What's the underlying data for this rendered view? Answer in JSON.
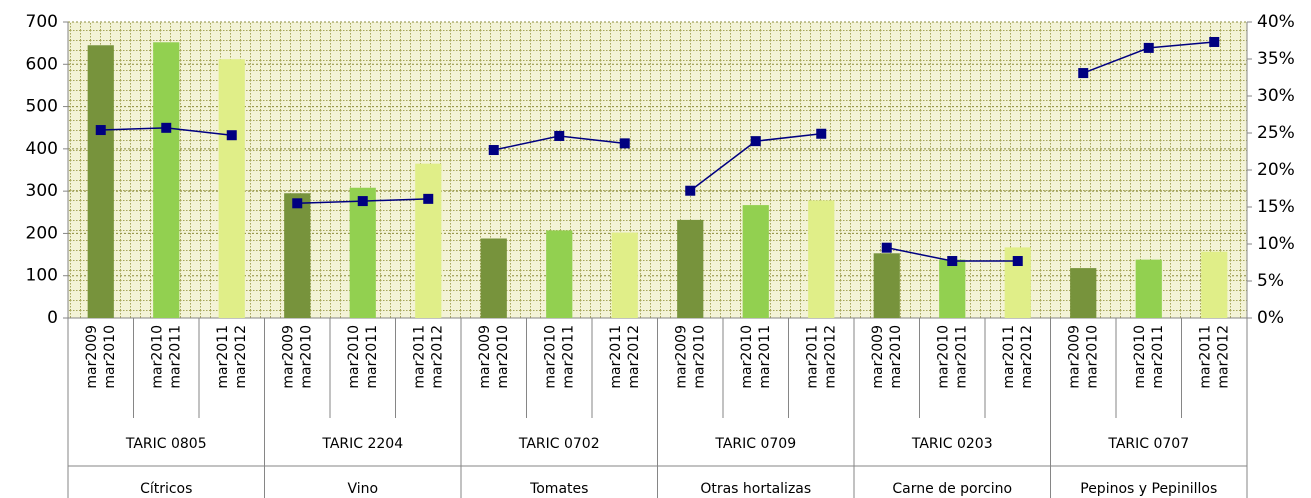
{
  "chart_data": {
    "type": "bar-line",
    "categories": [
      [
        "mar2009",
        "mar2010"
      ],
      [
        "mar2010",
        "mar2011"
      ],
      [
        "mar2011",
        "mar2012"
      ],
      [
        "mar2009",
        "mar2010"
      ],
      [
        "mar2010",
        "mar2011"
      ],
      [
        "mar2011",
        "mar2012"
      ],
      [
        "mar2009",
        "mar2010"
      ],
      [
        "mar2010",
        "mar2011"
      ],
      [
        "mar2011",
        "mar2012"
      ],
      [
        "mar2009",
        "mar2010"
      ],
      [
        "mar2010",
        "mar2011"
      ],
      [
        "mar2011",
        "mar2012"
      ],
      [
        "mar2009",
        "mar2010"
      ],
      [
        "mar2010",
        "mar2011"
      ],
      [
        "mar2011",
        "mar2012"
      ],
      [
        "mar2009",
        "mar2010"
      ],
      [
        "mar2010",
        "mar2011"
      ],
      [
        "mar2011",
        "mar2012"
      ]
    ],
    "groups": [
      {
        "code": "TARIC 0805",
        "name": "Cítricos"
      },
      {
        "code": "TARIC 2204",
        "name": "Vino"
      },
      {
        "code": "TARIC 0702",
        "name": "Tomates"
      },
      {
        "code": "TARIC 0709",
        "name": "Otras hortalizas"
      },
      {
        "code": "TARIC 0203",
        "name": "Carne de porcino"
      },
      {
        "code": "TARIC 0707",
        "name": "Pepinos y Pepinillos"
      }
    ],
    "series": [
      {
        "type": "bar",
        "colors": [
          "#77933c",
          "#92d050",
          "#e0ee88"
        ],
        "values": [
          645,
          652,
          612,
          295,
          308,
          365,
          188,
          207,
          202,
          232,
          267,
          278,
          153,
          138,
          167,
          118,
          138,
          157
        ]
      },
      {
        "type": "line",
        "axis": "y2",
        "color": "#000080",
        "values": [
          25.4,
          25.7,
          24.7,
          15.5,
          15.8,
          16.1,
          22.7,
          24.6,
          23.6,
          17.2,
          23.9,
          24.9,
          9.5,
          7.7,
          7.7,
          33.1,
          36.5,
          37.3
        ]
      }
    ],
    "ylim": [
      0,
      700
    ],
    "yticks": [
      0,
      100,
      200,
      300,
      400,
      500,
      600,
      700
    ],
    "y2lim": [
      0,
      40
    ],
    "y2ticks": [
      {
        "value": 0,
        "label": "0%"
      },
      {
        "value": 5,
        "label": "5%"
      },
      {
        "value": 10,
        "label": "10%"
      },
      {
        "value": 15,
        "label": "15%"
      },
      {
        "value": 20,
        "label": "20%"
      },
      {
        "value": 25,
        "label": "25%"
      },
      {
        "value": 30,
        "label": "30%"
      },
      {
        "value": 35,
        "label": "35%"
      },
      {
        "value": 40,
        "label": "40%"
      }
    ],
    "grid": true
  }
}
